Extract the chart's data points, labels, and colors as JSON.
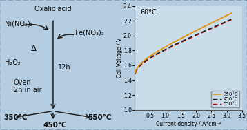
{
  "background_color": "#b5cde0",
  "plot_bg_color": "#c8dcea",
  "title_text": "60°C",
  "xlabel": "Current density / A*cm⁻²",
  "ylabel": "Cell Voltage / V",
  "ylim": [
    1.0,
    2.4
  ],
  "xlim": [
    0.0,
    3.5
  ],
  "yticks": [
    1.0,
    1.2,
    1.4,
    1.6,
    1.8,
    2.0,
    2.2,
    2.4
  ],
  "xticks": [
    0.5,
    1.0,
    1.5,
    2.0,
    2.5,
    3.0,
    3.5
  ],
  "legend_labels": [
    "350°C",
    "450°C",
    "550°C"
  ],
  "legend_colors": [
    "#e8940a",
    "#1a1a1a",
    "#aa1010"
  ],
  "arrow_color": "#222222",
  "left_bg": "#b5cde0"
}
